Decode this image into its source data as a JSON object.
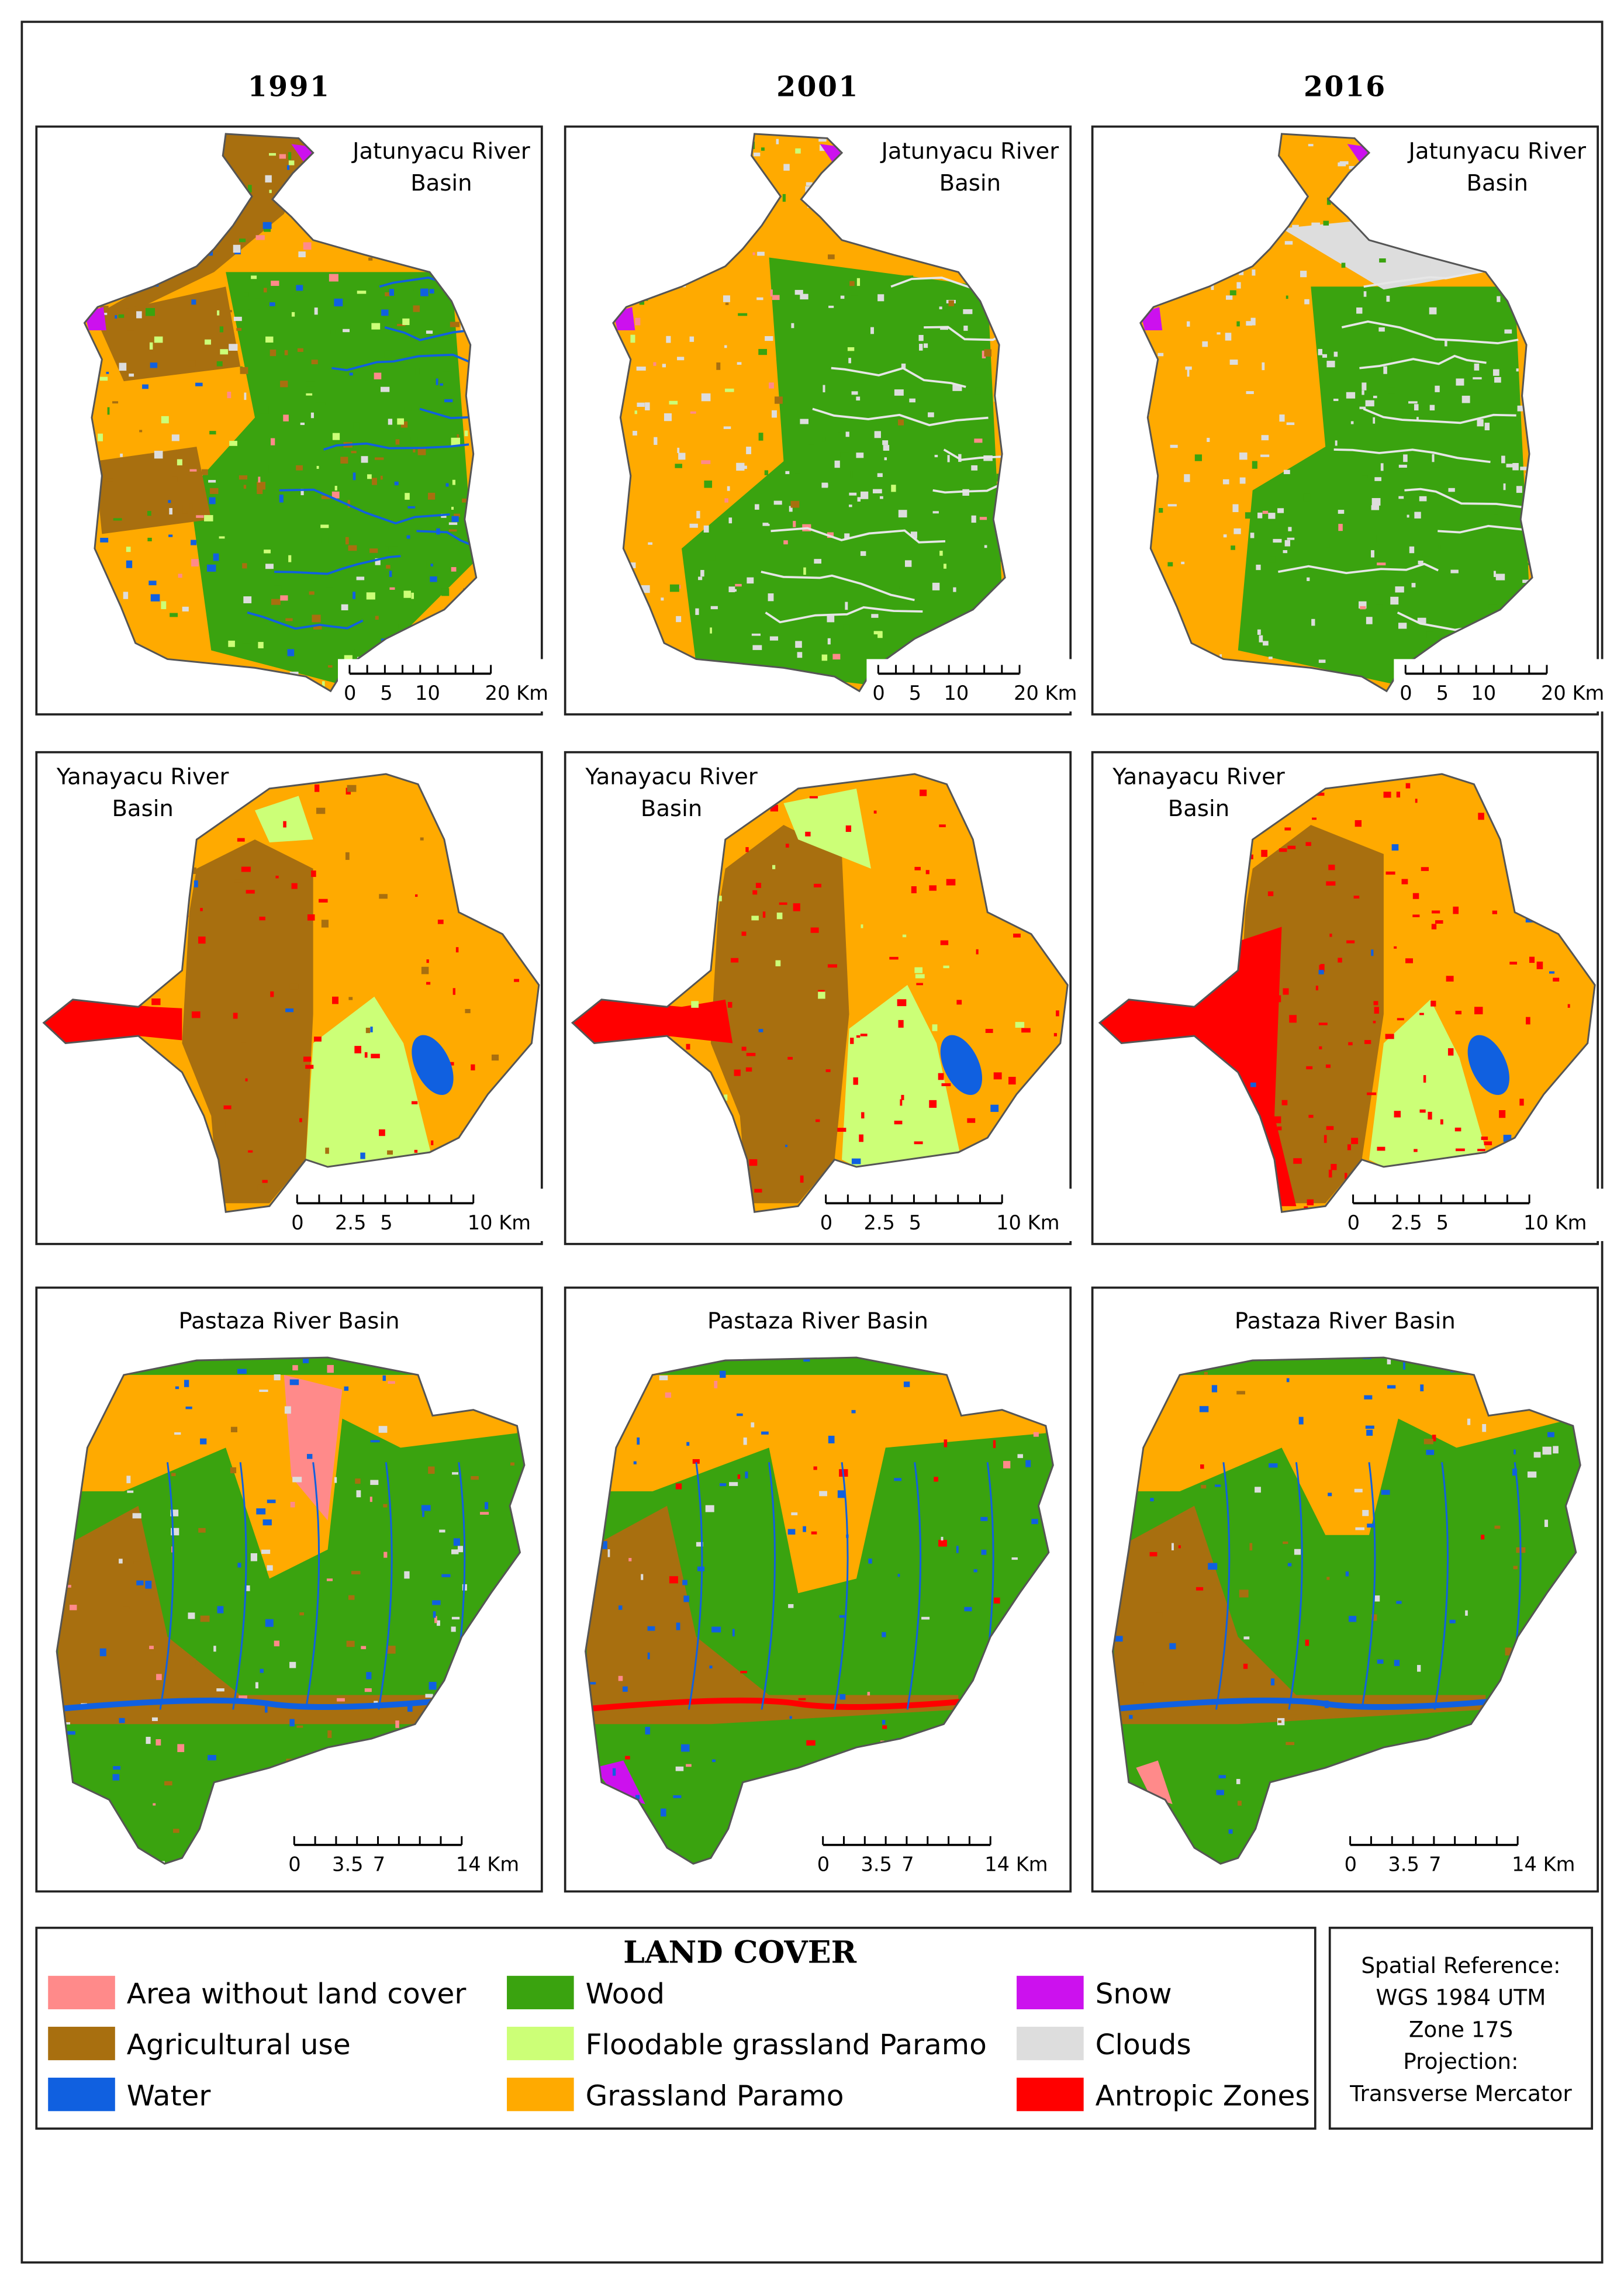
{
  "columns": [
    "1991",
    "2001",
    "2016"
  ],
  "rows": [
    {
      "label": [
        "Jatunyacu River",
        "Basin"
      ],
      "scale": [
        "0",
        "5",
        "10",
        "20 Km"
      ]
    },
    {
      "label": [
        "Yanayacu River",
        "Basin"
      ],
      "scale": [
        "0",
        "2.5",
        "5",
        "10 Km"
      ]
    },
    {
      "label": [
        "Pastaza River Basin"
      ],
      "scale": [
        "0",
        "3.5",
        "7",
        "14 Km"
      ]
    }
  ],
  "legend": {
    "title": "LAND COVER",
    "items": [
      {
        "label": "Area without land cover",
        "color": "#ff8a8a"
      },
      {
        "label": "Agricultural use",
        "color": "#a86f0f"
      },
      {
        "label": "Water",
        "color": "#1060e0"
      },
      {
        "label": "Wood",
        "color": "#3aa30f"
      },
      {
        "label": "Floodable grassland Paramo",
        "color": "#ccff77"
      },
      {
        "label": "Grassland Paramo",
        "color": "#ffaa00"
      },
      {
        "label": "Snow",
        "color": "#cc11ee"
      },
      {
        "label": "Clouds",
        "color": "#dddddd"
      },
      {
        "label": "Antropic Zones",
        "color": "#ff0000"
      }
    ]
  },
  "spatial_reference": [
    "Spatial Reference:",
    "WGS 1984 UTM",
    "Zone 17S",
    "Projection:",
    "Transverse Mercator"
  ]
}
